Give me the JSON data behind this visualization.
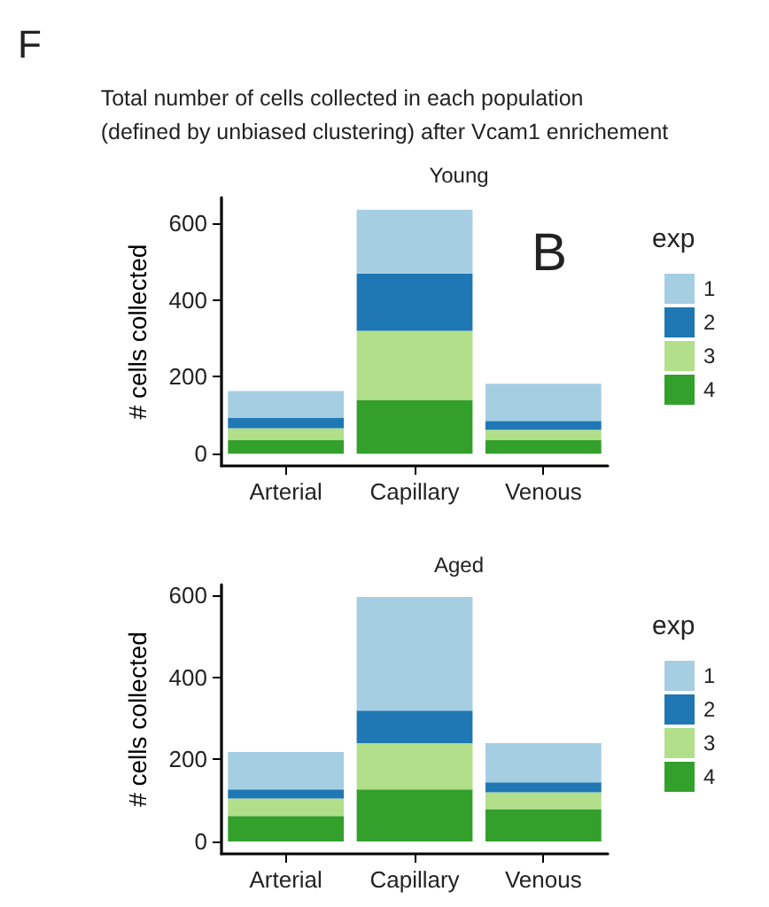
{
  "chart_data": [
    {
      "type": "bar",
      "title": "Young",
      "annotations": [
        "F",
        "Total number of cells collected in each population\n(defined by unbiased clustering) after Vcam1 enrichement",
        "B"
      ],
      "ylabel": "# cells collected",
      "legend_title": "exp",
      "legend": "right",
      "stacked": true,
      "categories": [
        "Arterial",
        "Capillary",
        "Venous"
      ],
      "ylim": [
        -32,
        667
      ],
      "yticks": [
        0,
        200,
        400,
        600
      ],
      "grid": false,
      "series": [
        {
          "name": "4",
          "color": "#33a02c",
          "values": [
            35,
            140,
            35
          ]
        },
        {
          "name": "3",
          "color": "#b2df8a",
          "values": [
            31,
            180,
            27
          ]
        },
        {
          "name": "2",
          "color": "#1f78b4",
          "values": [
            28,
            149,
            23
          ]
        },
        {
          "name": "1",
          "color": "#a6cee3",
          "values": [
            69,
            166,
            97
          ]
        }
      ]
    },
    {
      "type": "bar",
      "title": "Aged",
      "ylabel": "# cells collected",
      "legend_title": "exp",
      "legend": "right",
      "stacked": true,
      "categories": [
        "Arterial",
        "Capillary",
        "Venous"
      ],
      "ylim": [
        -30,
        626
      ],
      "yticks": [
        0,
        200,
        400,
        600
      ],
      "grid": false,
      "series": [
        {
          "name": "4",
          "color": "#33a02c",
          "values": [
            62,
            127,
            79
          ]
        },
        {
          "name": "3",
          "color": "#b2df8a",
          "values": [
            43,
            113,
            41
          ]
        },
        {
          "name": "2",
          "color": "#1f78b4",
          "values": [
            22,
            79,
            24
          ]
        },
        {
          "name": "1",
          "color": "#a6cee3",
          "values": [
            91,
            277,
            96
          ]
        }
      ]
    }
  ]
}
